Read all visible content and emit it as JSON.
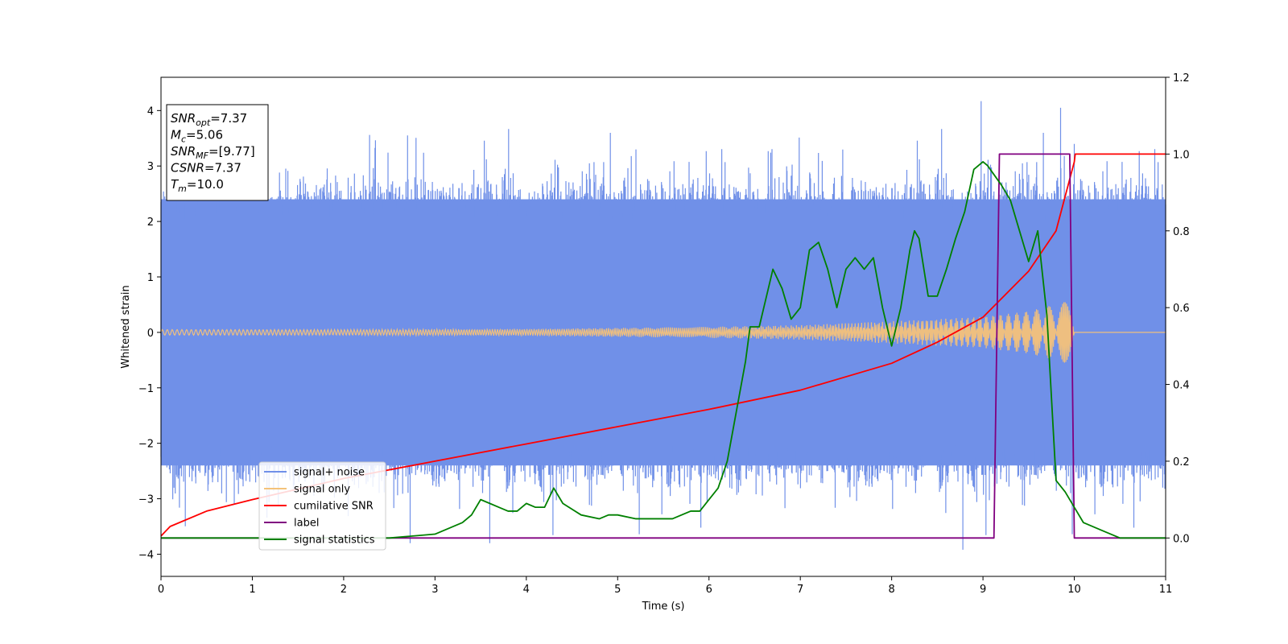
{
  "chart_data": {
    "type": "line",
    "xlabel": "Time (s)",
    "ylabel": "Whitened strain",
    "xlim": [
      0,
      11
    ],
    "ylim_left": [
      -4.4,
      4.6
    ],
    "ylim_right": [
      -0.1,
      1.2
    ],
    "xticks": [
      "0",
      "1",
      "2",
      "3",
      "4",
      "5",
      "6",
      "7",
      "8",
      "9",
      "10",
      "11"
    ],
    "yticks_left": [
      "−4",
      "−3",
      "−2",
      "−1",
      "0",
      "1",
      "2",
      "3",
      "4"
    ],
    "yticks_right": [
      "0.0",
      "0.2",
      "0.4",
      "0.6",
      "0.8",
      "1.0",
      "1.2"
    ],
    "grid": false,
    "legend_position": "lower-left",
    "annotation": [
      {
        "name": "SNR",
        "sub": "opt",
        "value": "=7.37"
      },
      {
        "name": "M",
        "sub": "c",
        "value": "=5.06"
      },
      {
        "name": "SNR",
        "sub": "MF",
        "value": "=[9.77]"
      },
      {
        "name": "CSNR",
        "sub": "",
        "value": "=7.37"
      },
      {
        "name": "T",
        "sub": "m",
        "value": "=10.0"
      }
    ],
    "series": [
      {
        "name": "signal+ noise",
        "axis": "left",
        "color": "#7090e8",
        "description": "noise band roughly between -2.5 and 2.5 with spikes up to 4.2 and down to -3.9",
        "envelope": {
          "low": -2.4,
          "high": 2.4
        },
        "spikes": [
          [
            2.7,
            3.55
          ],
          [
            3.6,
            -3.8
          ],
          [
            5.2,
            3.3
          ],
          [
            8.78,
            -3.92
          ],
          [
            8.98,
            4.17
          ],
          [
            9.85,
            4.05
          ],
          [
            10.0,
            3.4
          ]
        ]
      },
      {
        "name": "signal only",
        "axis": "left",
        "color": "#f4c27a",
        "description": "chirp amplitude growing until merger at t=10, then zero",
        "amplitude": [
          [
            0,
            0.05
          ],
          [
            2,
            0.05
          ],
          [
            4,
            0.06
          ],
          [
            6,
            0.1
          ],
          [
            7,
            0.13
          ],
          [
            8,
            0.2
          ],
          [
            9,
            0.28
          ],
          [
            9.5,
            0.38
          ],
          [
            9.9,
            0.55
          ],
          [
            10.0,
            0.6
          ],
          [
            10.01,
            0.0
          ],
          [
            11,
            0.0
          ]
        ]
      },
      {
        "name": "cumilative SNR",
        "axis": "right",
        "color": "#ff0000",
        "x": [
          0,
          0.1,
          0.5,
          1,
          2,
          3,
          4,
          5,
          6,
          7,
          8,
          8.5,
          9,
          9.5,
          9.8,
          10.0,
          10.01,
          11
        ],
        "y": [
          0.005,
          0.03,
          0.07,
          0.1,
          0.155,
          0.2,
          0.245,
          0.29,
          0.335,
          0.385,
          0.455,
          0.51,
          0.575,
          0.695,
          0.8,
          0.98,
          1.0,
          1.0
        ]
      },
      {
        "name": "label",
        "axis": "right",
        "color": "#800080",
        "x": [
          0,
          9.12,
          9.18,
          9.95,
          10.0,
          11
        ],
        "y": [
          0,
          0,
          1,
          1,
          0,
          0
        ]
      },
      {
        "name": "signal statistics",
        "axis": "right",
        "color": "#008000",
        "x": [
          0,
          2.5,
          3.0,
          3.3,
          3.4,
          3.5,
          3.6,
          3.7,
          3.8,
          3.9,
          4.0,
          4.1,
          4.2,
          4.3,
          4.4,
          4.6,
          4.8,
          4.9,
          5.0,
          5.2,
          5.4,
          5.6,
          5.8,
          5.9,
          6.0,
          6.1,
          6.2,
          6.3,
          6.4,
          6.45,
          6.55,
          6.6,
          6.7,
          6.8,
          6.9,
          7.0,
          7.1,
          7.2,
          7.3,
          7.4,
          7.5,
          7.6,
          7.7,
          7.8,
          7.9,
          8.0,
          8.1,
          8.2,
          8.25,
          8.3,
          8.4,
          8.5,
          8.6,
          8.7,
          8.8,
          8.9,
          9.0,
          9.05,
          9.2,
          9.3,
          9.4,
          9.5,
          9.6,
          9.7,
          9.8,
          9.9,
          10.0,
          10.1,
          10.3,
          10.5,
          10.7,
          11
        ],
        "y": [
          0.0,
          0.0,
          0.01,
          0.04,
          0.06,
          0.1,
          0.09,
          0.08,
          0.07,
          0.07,
          0.09,
          0.08,
          0.08,
          0.13,
          0.09,
          0.06,
          0.05,
          0.06,
          0.06,
          0.05,
          0.05,
          0.05,
          0.07,
          0.07,
          0.1,
          0.13,
          0.2,
          0.33,
          0.46,
          0.55,
          0.55,
          0.6,
          0.7,
          0.65,
          0.57,
          0.6,
          0.75,
          0.77,
          0.7,
          0.6,
          0.7,
          0.73,
          0.7,
          0.73,
          0.6,
          0.5,
          0.6,
          0.75,
          0.8,
          0.78,
          0.63,
          0.63,
          0.7,
          0.78,
          0.85,
          0.96,
          0.98,
          0.97,
          0.92,
          0.88,
          0.8,
          0.72,
          0.8,
          0.58,
          0.15,
          0.12,
          0.08,
          0.04,
          0.02,
          0.0,
          0.0,
          0.0
        ]
      }
    ]
  }
}
